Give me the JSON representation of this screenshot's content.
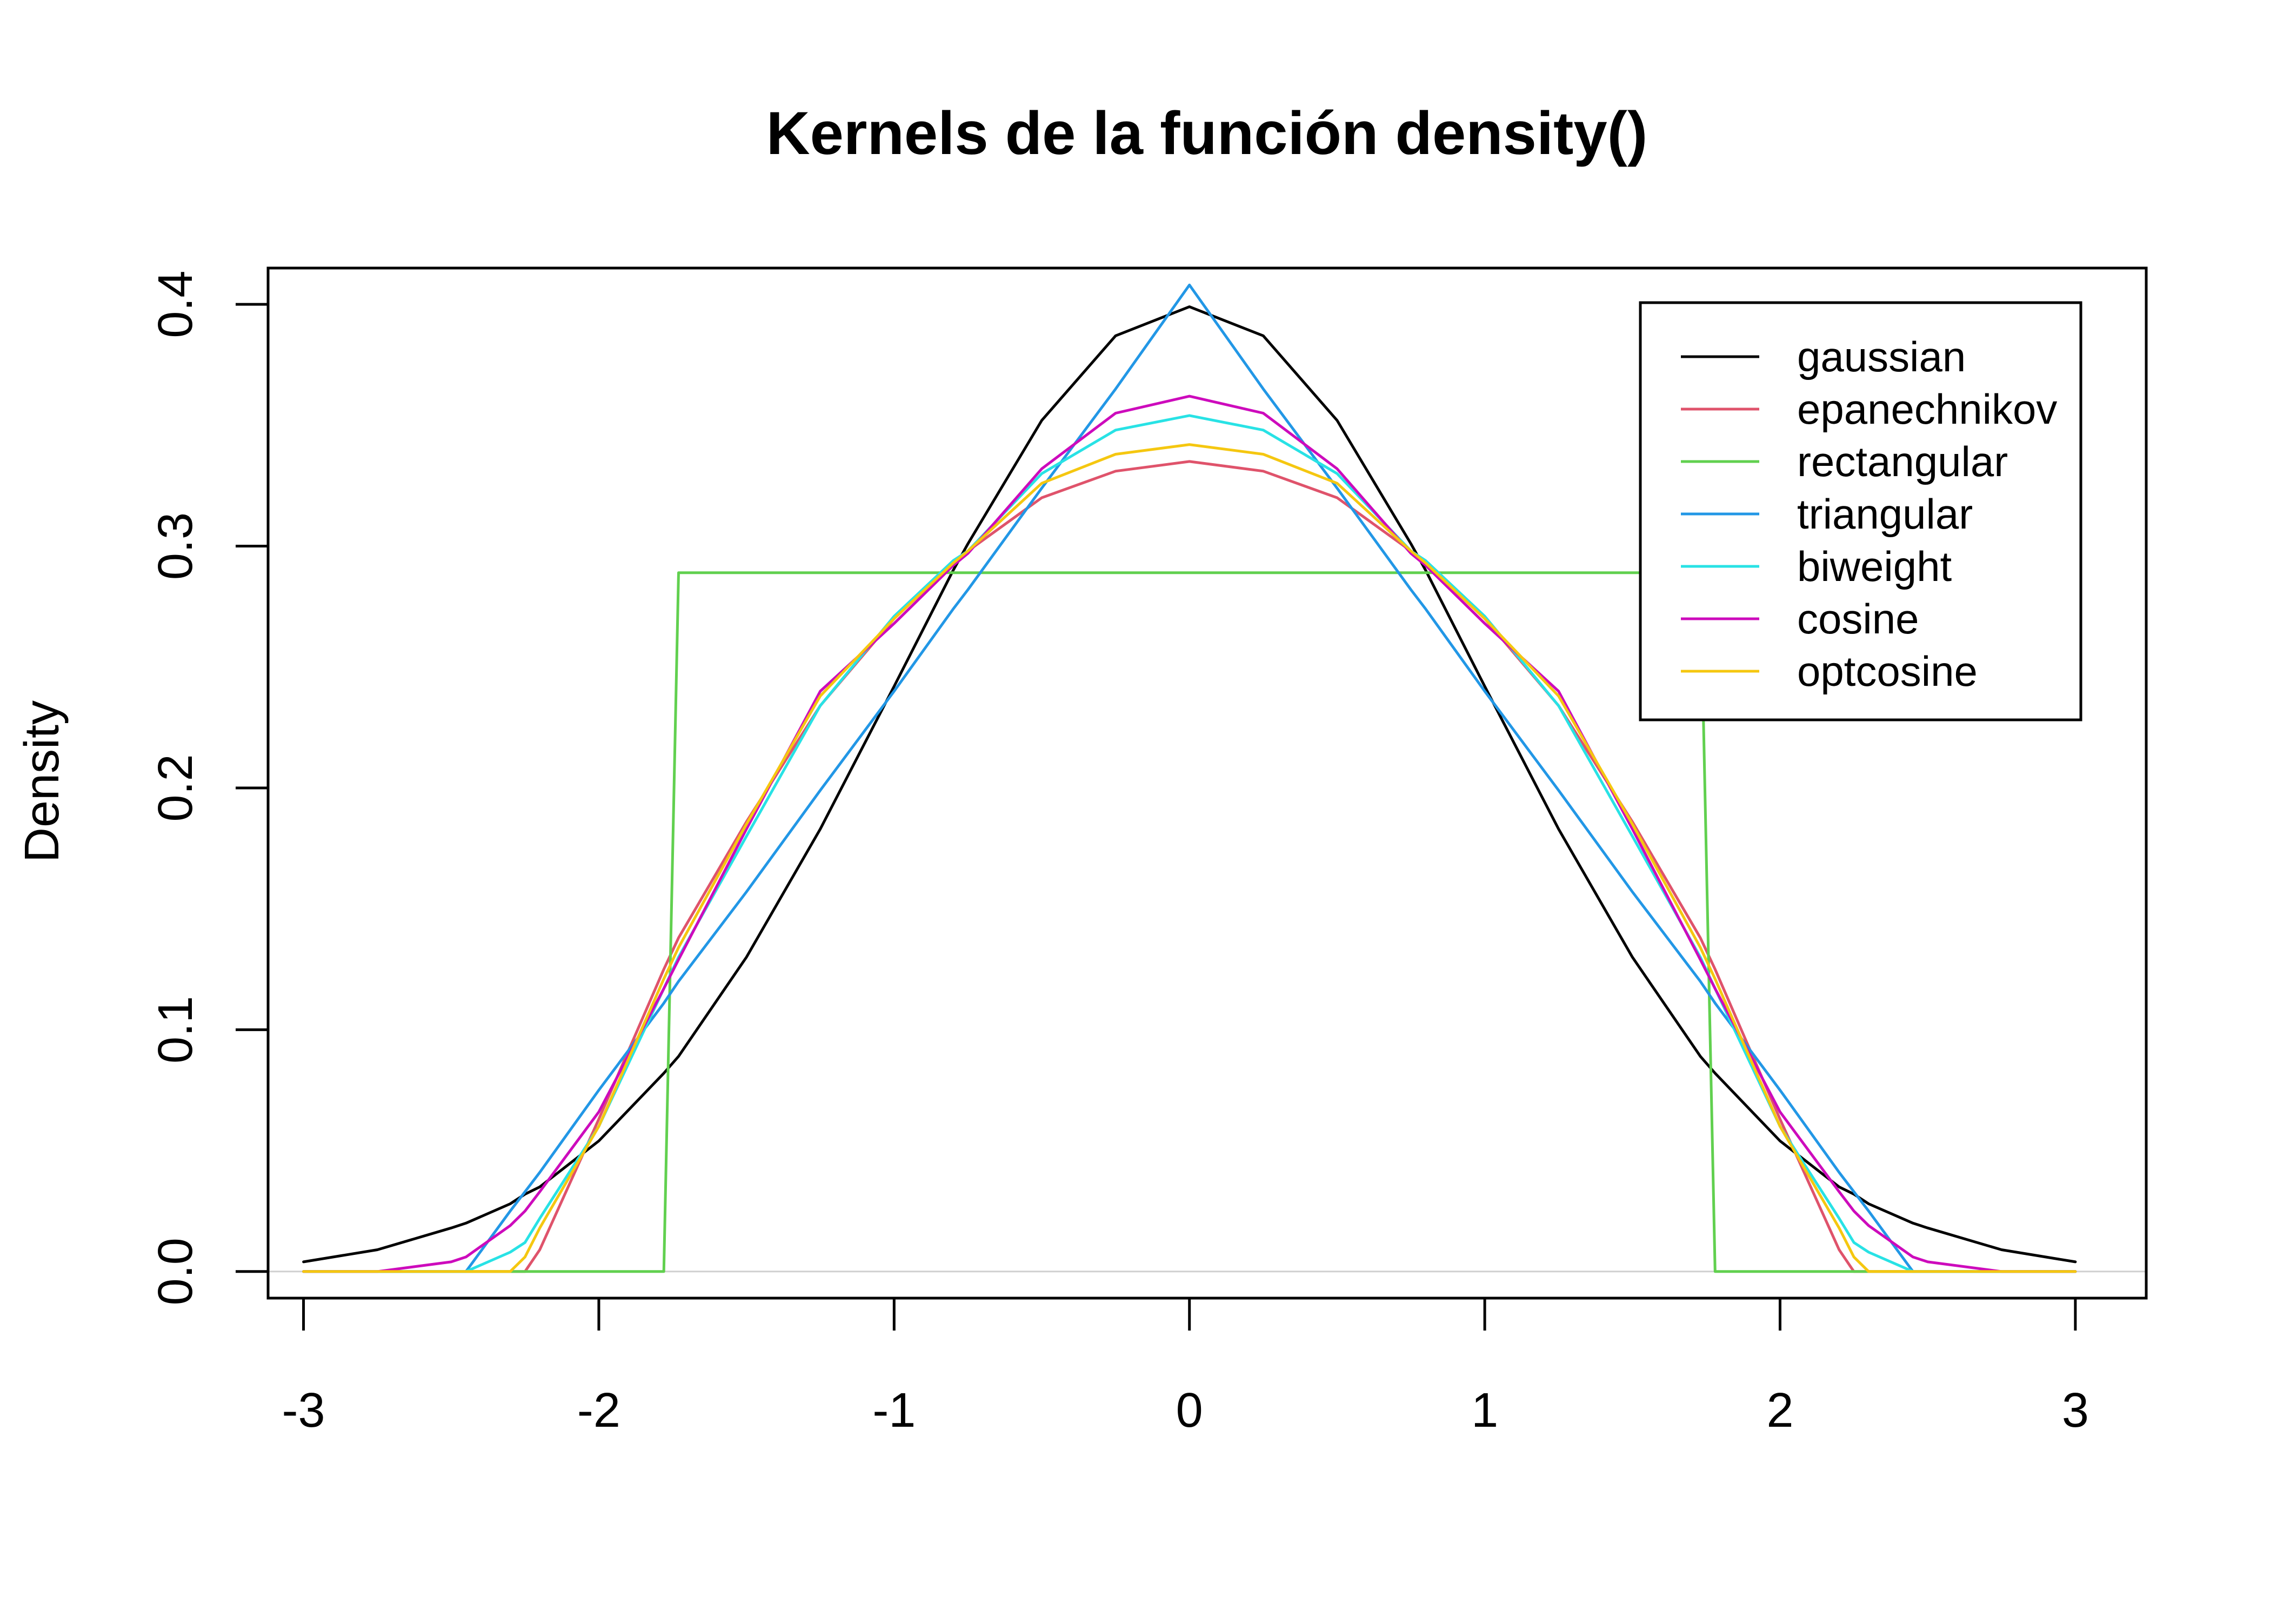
{
  "chart_data": {
    "type": "line",
    "title": "Kernels de la función density()",
    "xlabel": "",
    "ylabel": "Density",
    "xlim": [
      -3.12,
      3.24
    ],
    "ylim": [
      -0.011,
      0.415
    ],
    "x_ticks": [
      -3,
      -2,
      -1,
      0,
      1,
      2,
      3
    ],
    "x_tick_labels": [
      "-3",
      "-2",
      "-1",
      "0",
      "1",
      "2",
      "3"
    ],
    "y_ticks": [
      0.0,
      0.1,
      0.2,
      0.3,
      0.4
    ],
    "y_tick_labels": [
      "0.0",
      "0.1",
      "0.2",
      "0.3",
      "0.4"
    ],
    "zero_line": true,
    "grid": false,
    "legend_position": "top-right",
    "x": [
      -3.0,
      -2.75,
      -2.5,
      -2.45,
      -2.3,
      -2.25,
      -2.2,
      -2.0,
      -1.78,
      -1.73,
      -1.5,
      -1.25,
      -1.0,
      -0.8,
      -0.75,
      -0.5,
      -0.25,
      0.0,
      0.25,
      0.5,
      0.75,
      0.8,
      1.0,
      1.25,
      1.5,
      1.73,
      1.78,
      2.0,
      2.2,
      2.25,
      2.3,
      2.45,
      2.5,
      2.75,
      3.0
    ],
    "series": [
      {
        "name": "gaussian",
        "color": "#000000",
        "values": [
          0.004,
          0.009,
          0.018,
          0.02,
          0.028,
          0.032,
          0.035,
          0.054,
          0.082,
          0.089,
          0.13,
          0.183,
          0.242,
          0.29,
          0.301,
          0.352,
          0.387,
          0.399,
          0.387,
          0.352,
          0.301,
          0.29,
          0.242,
          0.183,
          0.13,
          0.089,
          0.082,
          0.054,
          0.035,
          0.032,
          0.028,
          0.02,
          0.018,
          0.009,
          0.004
        ]
      },
      {
        "name": "epanechnikov",
        "color": "#DF536B",
        "values": [
          0.0,
          0.0,
          0.0,
          0.0,
          0.0,
          0.0,
          0.009,
          0.063,
          0.125,
          0.138,
          0.186,
          0.234,
          0.27,
          0.293,
          0.298,
          0.32,
          0.331,
          0.335,
          0.331,
          0.32,
          0.298,
          0.293,
          0.27,
          0.234,
          0.186,
          0.138,
          0.125,
          0.063,
          0.009,
          0.0,
          0.0,
          0.0,
          0.0,
          0.0,
          0.0
        ]
      },
      {
        "name": "rectangular",
        "color": "#61D04F",
        "values": [
          0.0,
          0.0,
          0.0,
          0.0,
          0.0,
          0.0,
          0.0,
          0.0,
          0.0,
          0.289,
          0.289,
          0.289,
          0.289,
          0.289,
          0.289,
          0.289,
          0.289,
          0.289,
          0.289,
          0.289,
          0.289,
          0.289,
          0.289,
          0.289,
          0.289,
          0.289,
          0.0,
          0.0,
          0.0,
          0.0,
          0.0,
          0.0,
          0.0,
          0.0,
          0.0
        ]
      },
      {
        "name": "triangular",
        "color": "#2297E6",
        "values": [
          0.0,
          0.0,
          0.0,
          0.0,
          0.025,
          0.033,
          0.041,
          0.075,
          0.111,
          0.12,
          0.157,
          0.199,
          0.24,
          0.274,
          0.282,
          0.324,
          0.365,
          0.408,
          0.365,
          0.324,
          0.282,
          0.274,
          0.24,
          0.199,
          0.157,
          0.12,
          0.111,
          0.075,
          0.041,
          0.033,
          0.025,
          0.0,
          0.0,
          0.0,
          0.0
        ]
      },
      {
        "name": "biweight",
        "color": "#28E2E5",
        "values": [
          0.0,
          0.0,
          0.0,
          0.0,
          0.008,
          0.012,
          0.022,
          0.06,
          0.117,
          0.13,
          0.18,
          0.234,
          0.271,
          0.294,
          0.298,
          0.33,
          0.348,
          0.354,
          0.348,
          0.33,
          0.298,
          0.294,
          0.271,
          0.234,
          0.18,
          0.13,
          0.117,
          0.06,
          0.022,
          0.012,
          0.008,
          0.0,
          0.0,
          0.0,
          0.0
        ]
      },
      {
        "name": "cosine",
        "color": "#CD0BBC",
        "values": [
          0.0,
          0.0,
          0.004,
          0.006,
          0.019,
          0.025,
          0.033,
          0.066,
          0.117,
          0.129,
          0.183,
          0.24,
          0.268,
          0.292,
          0.297,
          0.332,
          0.355,
          0.362,
          0.355,
          0.332,
          0.297,
          0.292,
          0.268,
          0.24,
          0.183,
          0.129,
          0.117,
          0.066,
          0.033,
          0.025,
          0.019,
          0.006,
          0.004,
          0.0,
          0.0
        ]
      },
      {
        "name": "optcosine",
        "color": "#F5C710",
        "values": [
          0.0,
          0.0,
          0.0,
          0.0,
          0.0,
          0.006,
          0.018,
          0.06,
          0.121,
          0.134,
          0.185,
          0.238,
          0.27,
          0.293,
          0.298,
          0.326,
          0.338,
          0.342,
          0.338,
          0.326,
          0.298,
          0.293,
          0.27,
          0.238,
          0.185,
          0.134,
          0.121,
          0.06,
          0.018,
          0.006,
          0.0,
          0.0,
          0.0,
          0.0,
          0.0
        ]
      }
    ]
  }
}
